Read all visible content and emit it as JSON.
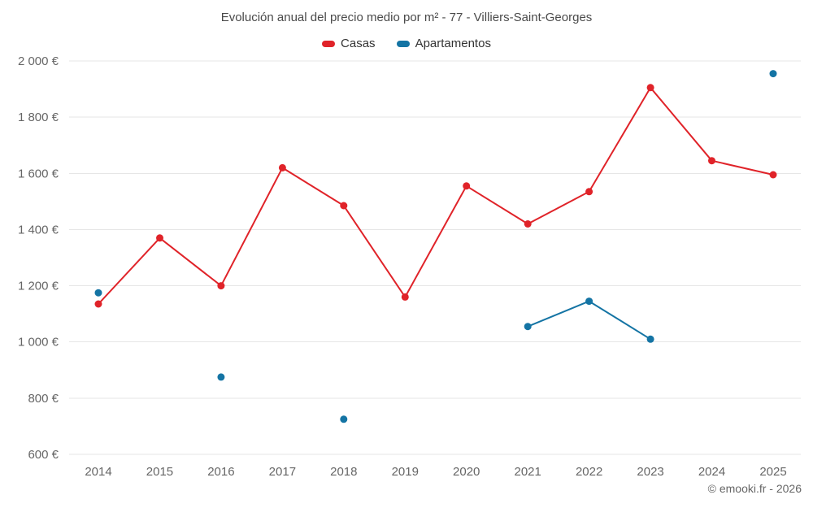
{
  "chart_data": {
    "type": "line",
    "title": "Evolución anual del precio medio por m² - 77 - Villiers-Saint-Georges",
    "categories": [
      "2014",
      "2015",
      "2016",
      "2017",
      "2018",
      "2019",
      "2020",
      "2021",
      "2022",
      "2023",
      "2024",
      "2025"
    ],
    "series": [
      {
        "name": "Casas",
        "color": "#e02329",
        "values": [
          1135,
          1370,
          1200,
          1620,
          1485,
          1160,
          1555,
          1420,
          1535,
          1905,
          1645,
          1595
        ]
      },
      {
        "name": "Apartamentos",
        "color": "#1474a4",
        "values": [
          1175,
          null,
          875,
          null,
          725,
          null,
          null,
          1055,
          1145,
          1010,
          null,
          1955
        ]
      }
    ],
    "xlabel": "",
    "ylabel": "",
    "ylim": [
      600,
      2000
    ],
    "yticks": [
      {
        "value": 600,
        "label": "600 €"
      },
      {
        "value": 800,
        "label": "800 €"
      },
      {
        "value": 1000,
        "label": "1 000 €"
      },
      {
        "value": 1200,
        "label": "1 200 €"
      },
      {
        "value": 1400,
        "label": "1 400 €"
      },
      {
        "value": 1600,
        "label": "1 600 €"
      },
      {
        "value": 1800,
        "label": "1 800 €"
      },
      {
        "value": 2000,
        "label": "2 000 €"
      }
    ],
    "grid": true,
    "legend_position": "top"
  },
  "footer": {
    "credit": "© emooki.fr - 2026"
  }
}
